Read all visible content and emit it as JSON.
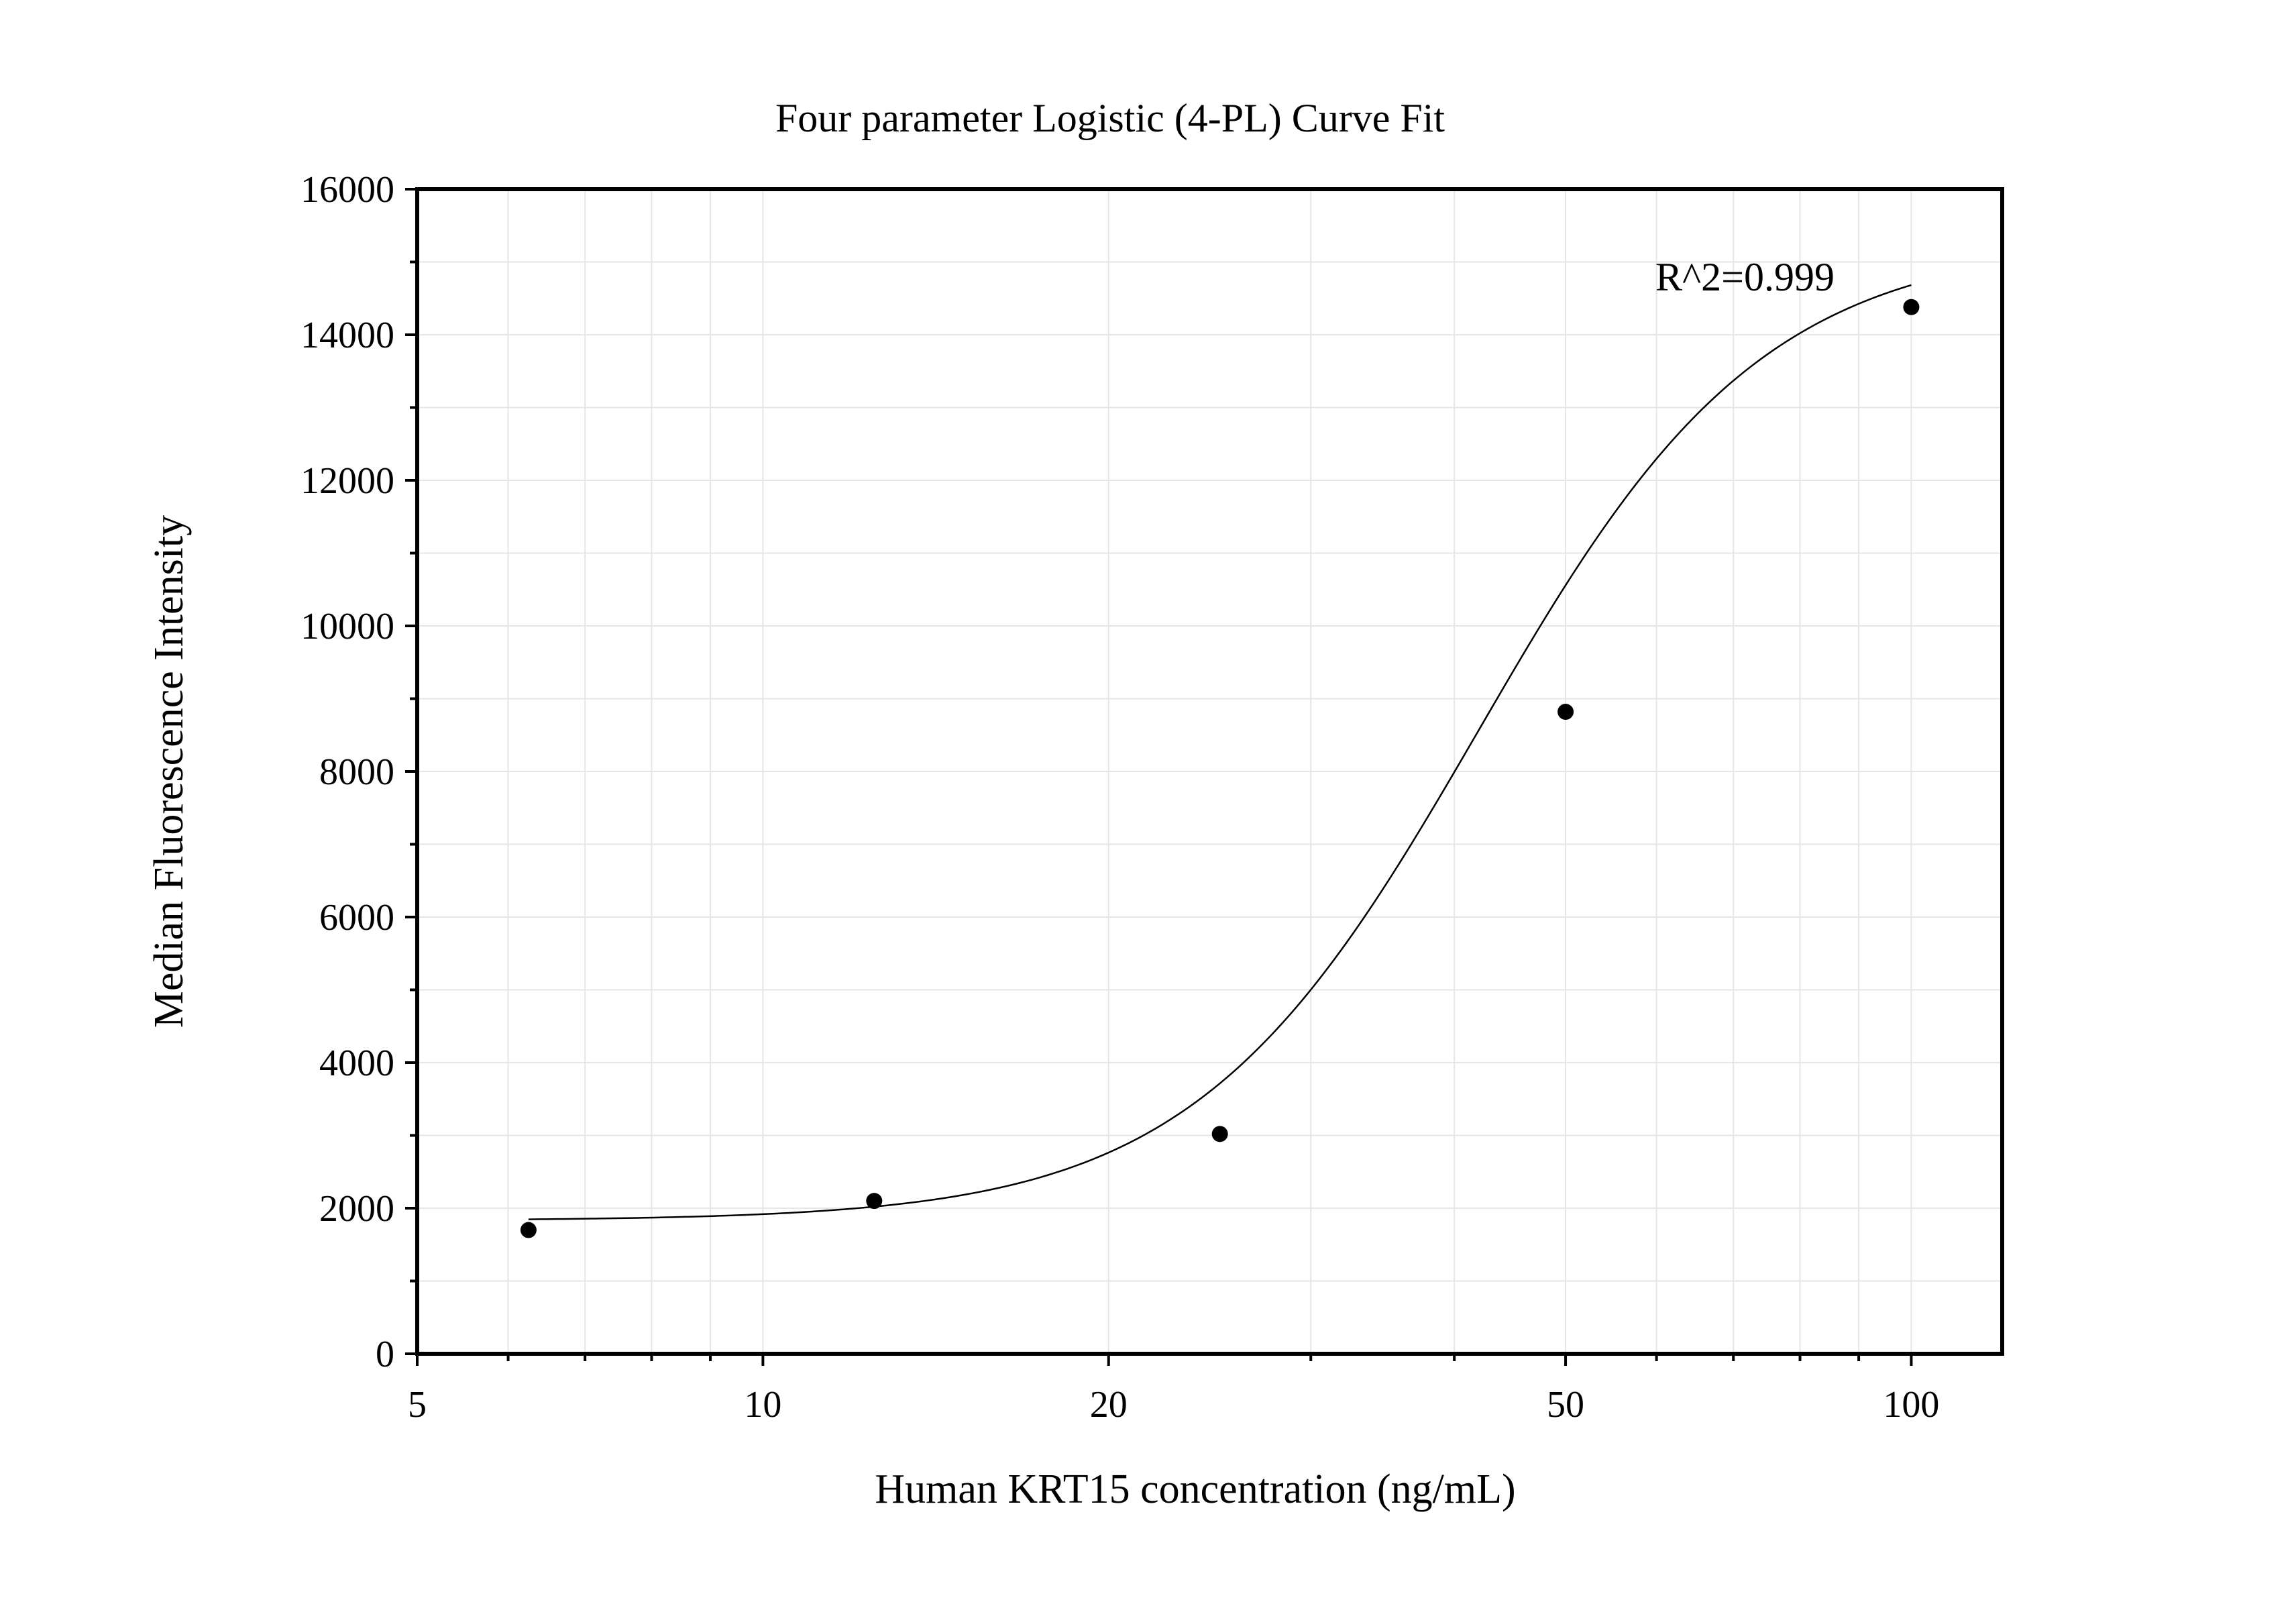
{
  "chart_data": {
    "type": "scatter",
    "title": "Four parameter Logistic (4-PL) Curve Fit",
    "xlabel": "Human KRT15 concentration (ng/mL)",
    "ylabel": "Median Fluorescence Intensity",
    "x_scale": "log",
    "xlim": [
      5,
      120
    ],
    "ylim": [
      0,
      16000
    ],
    "x_ticks": [
      5,
      10,
      20,
      50,
      100
    ],
    "x_tick_labels": [
      "5",
      "10",
      "20",
      "50",
      "100"
    ],
    "y_ticks": [
      0,
      2000,
      4000,
      6000,
      8000,
      10000,
      12000,
      14000,
      16000
    ],
    "y_tick_labels": [
      "0",
      "2000",
      "4000",
      "6000",
      "8000",
      "10000",
      "12000",
      "14000",
      "16000"
    ],
    "grid": true,
    "legend": "none",
    "annotation": "R^2=0.999",
    "points": {
      "x": [
        6.25,
        12.5,
        25,
        50,
        100
      ],
      "y": [
        1700,
        2100,
        3020,
        8820,
        14380
      ]
    },
    "fit": {
      "model": "4PL",
      "bottom": 1830,
      "top": 15300,
      "ec50": 42,
      "hill": 3.5,
      "x_range": [
        6.25,
        100
      ]
    },
    "colors": {
      "points": "#000000",
      "curve": "#000000",
      "grid": "#e6e6e6",
      "frame": "#000000"
    }
  }
}
